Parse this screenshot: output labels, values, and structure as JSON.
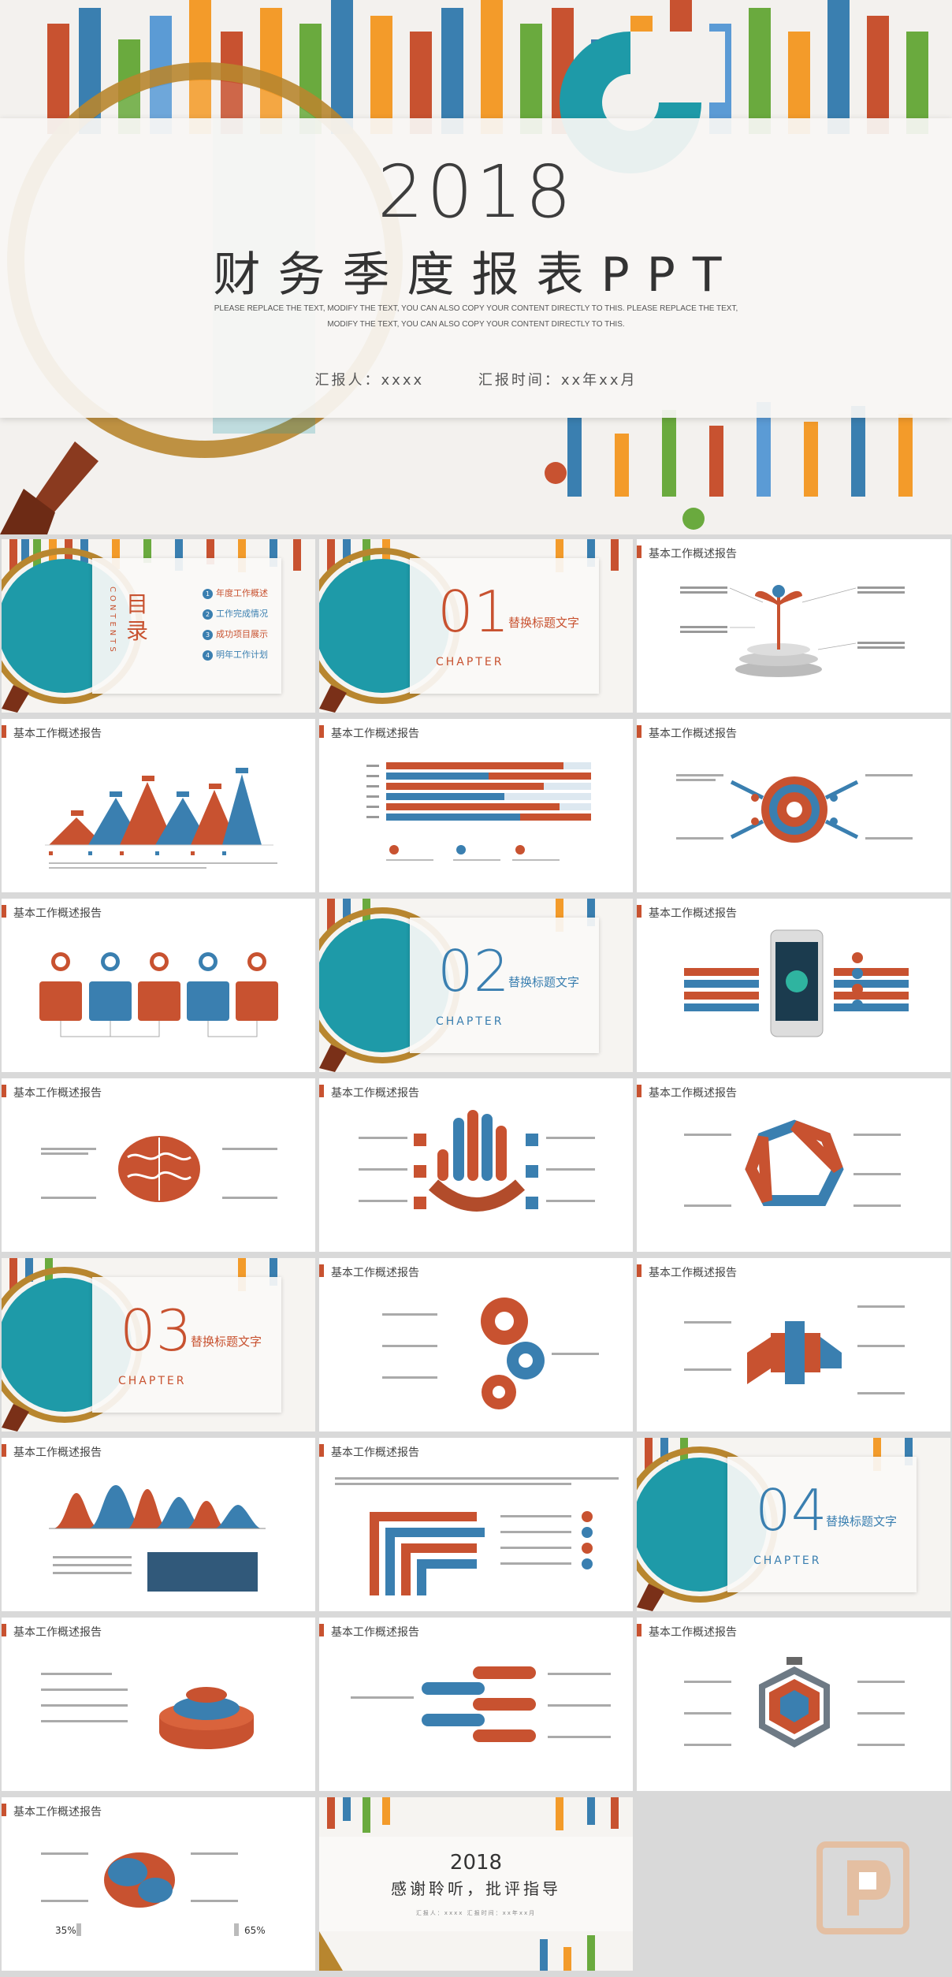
{
  "hero": {
    "year": "2018",
    "title": "财务季度报表PPT",
    "subtitle_line1": "PLEASE REPLACE THE TEXT, MODIFY THE TEXT, YOU CAN ALSO COPY YOUR CONTENT DIRECTLY TO THIS. PLEASE REPLACE THE TEXT,",
    "subtitle_line2": "MODIFY THE TEXT, YOU CAN ALSO COPY YOUR CONTENT DIRECTLY TO THIS.",
    "reporter": "汇报人：xxxx",
    "report_time": "汇报时间：xx年xx月"
  },
  "slide_header": "基本工作概述报告",
  "toc": {
    "title": "目录",
    "title_en": "CONTENTS",
    "items": [
      "年度工作概述",
      "工作完成情况",
      "成功项目展示",
      "明年工作计划"
    ]
  },
  "sections": [
    {
      "num": "01",
      "chapter": "CHAPTER",
      "label": "替换标题文字"
    },
    {
      "num": "02",
      "chapter": "CHAPTER",
      "label": "替换标题文字"
    },
    {
      "num": "03",
      "chapter": "CHAPTER",
      "label": "替换标题文字"
    },
    {
      "num": "04",
      "chapter": "CHAPTER",
      "label": "替换标题文字"
    }
  ],
  "ending": {
    "year": "2018",
    "text": "感谢聆听，批评指导",
    "meta": "汇报人：xxxx   汇报时间：xx年xx月"
  },
  "percents": {
    "left": "35%",
    "right": "65%"
  },
  "colors": {
    "orange": "#c85230",
    "blue": "#3a7fb0",
    "teal": "#1e9aa8",
    "gray": "#f3f1ee"
  }
}
